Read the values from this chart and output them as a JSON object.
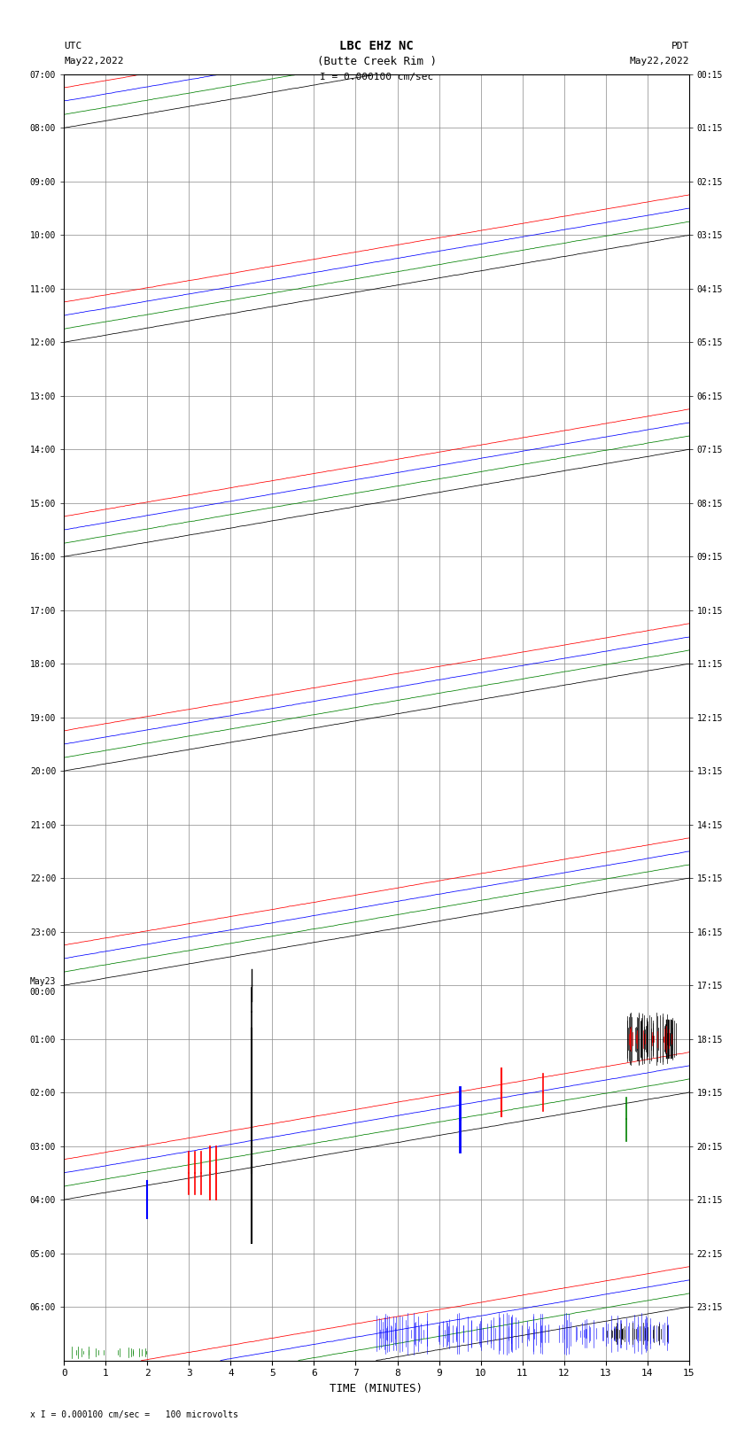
{
  "title_line1": "LBC EHZ NC",
  "title_line2": "(Butte Creek Rim )",
  "scale_text": "I = 0.000100 cm/sec",
  "label_left": "UTC",
  "date_left": "May22,2022",
  "label_right": "PDT",
  "date_right": "May22,2022",
  "xlabel": "TIME (MINUTES)",
  "footer": "x I = 0.000100 cm/sec =   100 microvolts",
  "utc_labels": [
    "07:00",
    "08:00",
    "09:00",
    "10:00",
    "11:00",
    "12:00",
    "13:00",
    "14:00",
    "15:00",
    "16:00",
    "17:00",
    "18:00",
    "19:00",
    "20:00",
    "21:00",
    "22:00",
    "23:00",
    "May23\n00:00",
    "01:00",
    "02:00",
    "03:00",
    "04:00",
    "05:00",
    "06:00"
  ],
  "pdt_labels": [
    "00:15",
    "01:15",
    "02:15",
    "03:15",
    "04:15",
    "05:15",
    "06:15",
    "07:15",
    "08:15",
    "09:15",
    "10:15",
    "11:15",
    "12:15",
    "13:15",
    "14:15",
    "15:15",
    "16:15",
    "17:15",
    "18:15",
    "19:15",
    "20:15",
    "21:15",
    "22:15",
    "23:15"
  ],
  "n_rows": 24,
  "n_minutes": 15,
  "bg_color": "white",
  "grid_color": "#888888",
  "colors": [
    "red",
    "blue",
    "green",
    "black"
  ],
  "fig_width": 8.5,
  "fig_height": 16.13
}
